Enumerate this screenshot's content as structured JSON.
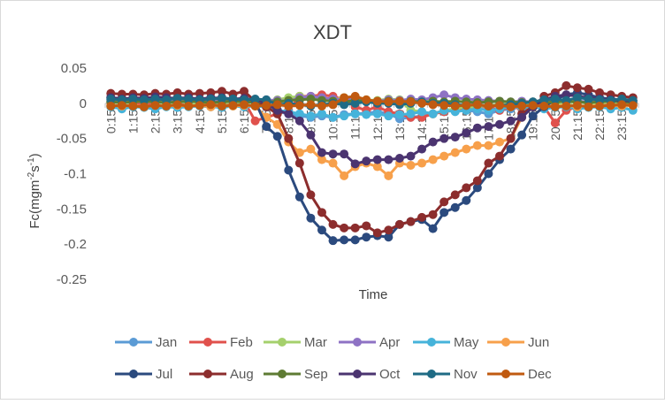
{
  "chart_data": {
    "type": "line",
    "title": "XDT",
    "xlabel": "Time",
    "ylabel_base": "Fc(mgm",
    "ylabel_sup1": "-2",
    "ylabel_mid": "s",
    "ylabel_sup2": "-1",
    "ylabel_end": ")",
    "ylim": [
      -0.25,
      0.05
    ],
    "yticks": [
      0.05,
      0,
      -0.05,
      -0.1,
      -0.15,
      -0.2,
      -0.25
    ],
    "ytick_labels": [
      "0.05",
      "0",
      "-0.05",
      "-0.1",
      "-0.15",
      "-0.2",
      "-0.25"
    ],
    "x": [
      "0:15",
      "0:45",
      "1:15",
      "1:45",
      "2:15",
      "2:45",
      "3:15",
      "3:45",
      "4:15",
      "4:45",
      "5:15",
      "5:45",
      "6:15",
      "6:45",
      "7:15",
      "7:45",
      "8:15",
      "8:45",
      "9:15",
      "9:45",
      "10:15",
      "10:45",
      "11:15",
      "11:45",
      "12:15",
      "12:45",
      "13:15",
      "13:45",
      "14:15",
      "14:45",
      "15:15",
      "15:45",
      "16:15",
      "16:45",
      "17:15",
      "17:45",
      "18:15",
      "18:45",
      "19:15",
      "19:45",
      "20:15",
      "20:45",
      "21:15",
      "21:45",
      "22:15",
      "22:45",
      "23:15",
      "23:45"
    ],
    "xtick_labels": [
      "0:15",
      "1:15",
      "2:15",
      "3:15",
      "4:15",
      "5:15",
      "6:15",
      "7:15",
      "8:15",
      "9:15",
      "10:15",
      "11:15",
      "12:15",
      "13:15",
      "14:15",
      "15:15",
      "16:15",
      "17:15",
      "18:15",
      "19:15",
      "20:15",
      "21:15",
      "22:15",
      "23:15"
    ],
    "legend_position": "bottom",
    "grid": false,
    "series": [
      {
        "name": "Jan",
        "color": "#5B9BD5",
        "values": [
          0.005,
          0.004,
          0.005,
          0.004,
          0.006,
          0.005,
          0.004,
          0.005,
          0.006,
          0.005,
          0.004,
          0.005,
          0.004,
          0.003,
          -0.005,
          -0.012,
          -0.015,
          -0.018,
          -0.02,
          -0.018,
          -0.02,
          -0.016,
          -0.015,
          -0.014,
          -0.012,
          -0.015,
          -0.022,
          -0.02,
          -0.018,
          -0.015,
          -0.012,
          -0.01,
          -0.01,
          -0.012,
          -0.015,
          -0.01,
          -0.008,
          -0.005,
          -0.005,
          -0.003,
          -0.002,
          0.0,
          0.003,
          0.002,
          0.004,
          0.003,
          0.005,
          0.004
        ]
      },
      {
        "name": "Feb",
        "color": "#E0514C",
        "values": [
          0.0,
          0.002,
          0.0,
          -0.002,
          0.0,
          0.002,
          0.0,
          0.0,
          0.002,
          0.0,
          -0.002,
          0.0,
          0.003,
          -0.025,
          -0.02,
          -0.015,
          -0.01,
          0.01,
          0.01,
          0.012,
          0.01,
          0.005,
          -0.005,
          -0.01,
          -0.005,
          -0.012,
          -0.015,
          -0.02,
          -0.02,
          -0.015,
          -0.012,
          -0.01,
          -0.008,
          -0.005,
          -0.005,
          -0.01,
          -0.005,
          -0.008,
          -0.005,
          -0.005,
          -0.028,
          -0.01,
          -0.005,
          -0.005,
          0.0,
          -0.002,
          0.0,
          -0.002
        ]
      },
      {
        "name": "Mar",
        "color": "#A5D06C",
        "values": [
          0.002,
          0.0,
          0.002,
          0.003,
          0.002,
          0.0,
          0.002,
          0.001,
          0.0,
          0.002,
          0.0,
          0.002,
          0.0,
          0.003,
          0.0,
          0.005,
          0.008,
          0.01,
          0.008,
          0.006,
          0.005,
          0.008,
          0.006,
          0.005,
          0.004,
          0.006,
          0.005,
          -0.01,
          -0.012,
          -0.015,
          -0.01,
          -0.008,
          -0.005,
          -0.005,
          -0.003,
          -0.002,
          0.0,
          0.0,
          0.0,
          0.002,
          0.0,
          0.0,
          0.002,
          0.0,
          0.0,
          0.002,
          0.0,
          0.0
        ]
      },
      {
        "name": "Apr",
        "color": "#8E72C4",
        "values": [
          0.003,
          0.002,
          0.003,
          0.002,
          0.004,
          0.003,
          0.002,
          0.003,
          0.002,
          0.003,
          0.004,
          0.002,
          0.003,
          0.004,
          0.005,
          0.004,
          0.003,
          0.008,
          0.01,
          0.008,
          0.006,
          0.005,
          0.006,
          0.004,
          0.003,
          0.005,
          0.004,
          0.006,
          0.005,
          0.008,
          0.012,
          0.008,
          0.006,
          0.005,
          0.004,
          0.003,
          0.002,
          0.003,
          0.002,
          0.004,
          0.003,
          0.002,
          0.003,
          0.002,
          0.004,
          0.003,
          0.002,
          0.003
        ]
      },
      {
        "name": "May",
        "color": "#46B3DA",
        "values": [
          -0.005,
          -0.008,
          -0.005,
          -0.006,
          -0.008,
          -0.005,
          -0.006,
          -0.005,
          -0.004,
          -0.005,
          -0.006,
          -0.004,
          -0.005,
          -0.004,
          -0.005,
          -0.01,
          -0.012,
          -0.015,
          -0.018,
          -0.015,
          -0.02,
          -0.018,
          -0.015,
          -0.016,
          -0.015,
          -0.018,
          -0.016,
          -0.015,
          -0.012,
          -0.015,
          -0.01,
          -0.012,
          -0.01,
          -0.008,
          -0.01,
          -0.008,
          -0.005,
          -0.006,
          -0.005,
          -0.008,
          -0.006,
          -0.005,
          -0.008,
          -0.006,
          -0.005,
          -0.008,
          -0.006,
          -0.01
        ]
      },
      {
        "name": "Jun",
        "color": "#F7A04B",
        "values": [
          -0.003,
          -0.004,
          -0.003,
          -0.005,
          -0.003,
          -0.004,
          -0.003,
          -0.004,
          -0.003,
          -0.005,
          -0.003,
          -0.004,
          -0.003,
          -0.004,
          -0.02,
          -0.03,
          -0.055,
          -0.07,
          -0.065,
          -0.08,
          -0.085,
          -0.103,
          -0.09,
          -0.085,
          -0.09,
          -0.103,
          -0.085,
          -0.088,
          -0.085,
          -0.08,
          -0.075,
          -0.07,
          -0.065,
          -0.06,
          -0.06,
          -0.055,
          -0.05,
          -0.02,
          -0.005,
          -0.003,
          -0.004,
          -0.003,
          -0.005,
          -0.003,
          -0.004,
          -0.003,
          -0.004,
          -0.003
        ]
      },
      {
        "name": "Jul",
        "color": "#2B4A7E",
        "values": [
          0.008,
          0.007,
          0.006,
          0.008,
          0.007,
          0.006,
          0.008,
          0.007,
          0.006,
          0.008,
          0.007,
          0.006,
          0.005,
          0.003,
          -0.033,
          -0.047,
          -0.095,
          -0.133,
          -0.163,
          -0.18,
          -0.195,
          -0.194,
          -0.194,
          -0.19,
          -0.188,
          -0.19,
          -0.172,
          -0.168,
          -0.165,
          -0.178,
          -0.155,
          -0.148,
          -0.138,
          -0.12,
          -0.1,
          -0.08,
          -0.065,
          -0.045,
          -0.018,
          -0.005,
          0.005,
          0.012,
          0.015,
          0.012,
          0.008,
          0.006,
          0.005,
          0.004
        ]
      },
      {
        "name": "Aug",
        "color": "#8C2D2D",
        "values": [
          0.014,
          0.013,
          0.013,
          0.012,
          0.014,
          0.013,
          0.015,
          0.013,
          0.014,
          0.015,
          0.017,
          0.013,
          0.017,
          0.003,
          -0.005,
          -0.015,
          -0.05,
          -0.085,
          -0.13,
          -0.155,
          -0.172,
          -0.177,
          -0.177,
          -0.174,
          -0.184,
          -0.18,
          -0.172,
          -0.168,
          -0.162,
          -0.158,
          -0.14,
          -0.13,
          -0.12,
          -0.11,
          -0.085,
          -0.075,
          -0.05,
          -0.015,
          -0.005,
          0.01,
          0.015,
          0.025,
          0.022,
          0.02,
          0.015,
          0.012,
          0.01,
          0.008
        ]
      },
      {
        "name": "Sep",
        "color": "#5E7B33",
        "values": [
          0.002,
          0.001,
          0.002,
          0.003,
          0.002,
          0.001,
          0.002,
          0.003,
          0.002,
          0.001,
          0.002,
          0.003,
          0.002,
          0.001,
          0.003,
          0.002,
          0.004,
          0.005,
          0.006,
          0.004,
          0.003,
          0.002,
          0.004,
          0.003,
          0.002,
          0.003,
          0.002,
          0.003,
          0.002,
          0.003,
          0.002,
          0.003,
          0.002,
          0.001,
          0.002,
          0.003,
          0.002,
          0.001,
          0.002,
          0.001,
          0.002,
          0.003,
          0.002,
          0.001,
          0.002,
          0.003,
          0.002,
          0.001
        ]
      },
      {
        "name": "Oct",
        "color": "#4B3470",
        "values": [
          0.008,
          0.006,
          0.008,
          0.007,
          0.009,
          0.008,
          0.007,
          0.008,
          0.006,
          0.007,
          0.008,
          0.006,
          0.007,
          0.005,
          0.0,
          -0.01,
          -0.015,
          -0.025,
          -0.045,
          -0.07,
          -0.072,
          -0.072,
          -0.086,
          -0.082,
          -0.08,
          -0.08,
          -0.078,
          -0.075,
          -0.065,
          -0.055,
          -0.05,
          -0.048,
          -0.042,
          -0.035,
          -0.033,
          -0.03,
          -0.025,
          -0.02,
          -0.005,
          0.005,
          0.01,
          0.012,
          0.01,
          0.008,
          0.006,
          0.005,
          0.004,
          0.003
        ]
      },
      {
        "name": "Nov",
        "color": "#1F6B85",
        "values": [
          0.006,
          0.005,
          0.006,
          0.005,
          0.006,
          0.005,
          0.007,
          0.006,
          0.005,
          0.006,
          0.007,
          0.006,
          0.005,
          0.006,
          0.005,
          -0.002,
          0.0,
          -0.002,
          -0.004,
          -0.002,
          0.0,
          -0.002,
          0.0,
          0.002,
          0.0,
          0.0,
          -0.002,
          0.0,
          0.002,
          0.0,
          0.0,
          -0.002,
          -0.003,
          -0.002,
          -0.004,
          -0.003,
          -0.002,
          0.0,
          0.002,
          0.005,
          0.006,
          0.004,
          0.008,
          0.006,
          0.005,
          0.004,
          0.006,
          0.004
        ]
      },
      {
        "name": "Dec",
        "color": "#C05A10",
        "values": [
          -0.004,
          -0.003,
          -0.004,
          -0.005,
          -0.003,
          -0.004,
          -0.002,
          -0.004,
          -0.003,
          -0.002,
          -0.004,
          -0.003,
          -0.002,
          -0.004,
          -0.003,
          -0.002,
          -0.004,
          -0.003,
          -0.002,
          -0.004,
          -0.002,
          0.008,
          0.01,
          0.005,
          0.003,
          0.002,
          0.003,
          0.002,
          0.0,
          -0.002,
          -0.003,
          -0.004,
          -0.003,
          -0.002,
          -0.004,
          -0.003,
          -0.005,
          -0.004,
          -0.003,
          -0.004,
          -0.005,
          -0.004,
          -0.003,
          -0.005,
          -0.004,
          -0.003,
          -0.002,
          -0.003
        ]
      }
    ]
  }
}
